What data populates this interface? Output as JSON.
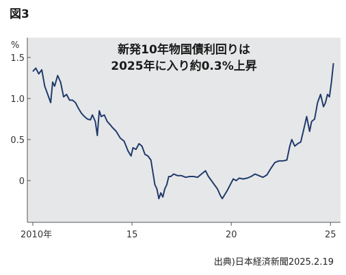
{
  "figure_label": "図3",
  "source": "出典)日本経済新聞2025.2.19",
  "chart_data": {
    "type": "line",
    "title_lines": [
      "新発10年物国債利回りは",
      "2025年に入り約0.3%上昇"
    ],
    "ylabel": "%",
    "xlabel": "",
    "xlim": [
      2010,
      2025.3
    ],
    "ylim": [
      -0.45,
      1.7
    ],
    "y_ticks": [
      {
        "value": 1.5,
        "label": "1.5"
      },
      {
        "value": 1.0,
        "label": "1.0"
      },
      {
        "value": 0.5,
        "label": "0.5"
      },
      {
        "value": 0,
        "label": "0"
      }
    ],
    "x_ticks": [
      {
        "value": 2010,
        "label": "2010年"
      },
      {
        "value": 2015,
        "label": "15"
      },
      {
        "value": 2020,
        "label": "20"
      },
      {
        "value": 2025,
        "label": "25"
      }
    ],
    "grid": false,
    "line_color": "#1f3a6b",
    "background_color": "#e6e7e8",
    "series": [
      {
        "x": [
          2010.0,
          2010.15,
          2010.3,
          2010.45,
          2010.6,
          2010.75,
          2010.9,
          2011.0,
          2011.1,
          2011.25,
          2011.4,
          2011.55,
          2011.7,
          2011.85,
          2012.0,
          2012.15,
          2012.3,
          2012.45,
          2012.6,
          2012.75,
          2012.9,
          2013.0,
          2013.15,
          2013.25,
          2013.35,
          2013.45,
          2013.6,
          2013.75,
          2013.9,
          2014.0,
          2014.2,
          2014.4,
          2014.6,
          2014.8,
          2014.95,
          2015.05,
          2015.2,
          2015.35,
          2015.5,
          2015.65,
          2015.8,
          2015.95,
          2016.05,
          2016.15,
          2016.25,
          2016.35,
          2016.45,
          2016.55,
          2016.65,
          2016.75,
          2016.85,
          2016.95,
          2017.1,
          2017.3,
          2017.5,
          2017.7,
          2017.9,
          2018.1,
          2018.3,
          2018.5,
          2018.7,
          2018.85,
          2019.0,
          2019.15,
          2019.3,
          2019.45,
          2019.55,
          2019.65,
          2019.8,
          2019.95,
          2020.1,
          2020.25,
          2020.4,
          2020.6,
          2020.8,
          2021.0,
          2021.2,
          2021.4,
          2021.6,
          2021.8,
          2022.0,
          2022.2,
          2022.4,
          2022.6,
          2022.8,
          2022.95,
          2023.05,
          2023.2,
          2023.35,
          2023.5,
          2023.65,
          2023.8,
          2023.95,
          2024.05,
          2024.2,
          2024.35,
          2024.5,
          2024.65,
          2024.75,
          2024.85,
          2024.95,
          2025.05,
          2025.15
        ],
        "values": [
          1.33,
          1.37,
          1.3,
          1.35,
          1.15,
          1.05,
          0.95,
          1.2,
          1.15,
          1.28,
          1.2,
          1.02,
          1.05,
          0.98,
          0.98,
          0.95,
          0.88,
          0.82,
          0.78,
          0.75,
          0.74,
          0.8,
          0.72,
          0.55,
          0.85,
          0.78,
          0.8,
          0.72,
          0.68,
          0.65,
          0.6,
          0.52,
          0.48,
          0.36,
          0.3,
          0.4,
          0.38,
          0.45,
          0.42,
          0.32,
          0.3,
          0.25,
          0.1,
          -0.05,
          -0.1,
          -0.22,
          -0.15,
          -0.2,
          -0.1,
          -0.05,
          0.05,
          0.05,
          0.08,
          0.06,
          0.06,
          0.04,
          0.05,
          0.05,
          0.04,
          0.08,
          0.12,
          0.05,
          0.0,
          -0.05,
          -0.1,
          -0.18,
          -0.22,
          -0.18,
          -0.12,
          -0.05,
          0.02,
          0.0,
          0.03,
          0.02,
          0.03,
          0.05,
          0.08,
          0.06,
          0.04,
          0.07,
          0.15,
          0.22,
          0.24,
          0.24,
          0.25,
          0.42,
          0.5,
          0.42,
          0.45,
          0.47,
          0.62,
          0.78,
          0.6,
          0.72,
          0.75,
          0.95,
          1.05,
          0.9,
          0.95,
          1.05,
          1.02,
          1.2,
          1.43
        ]
      }
    ]
  }
}
